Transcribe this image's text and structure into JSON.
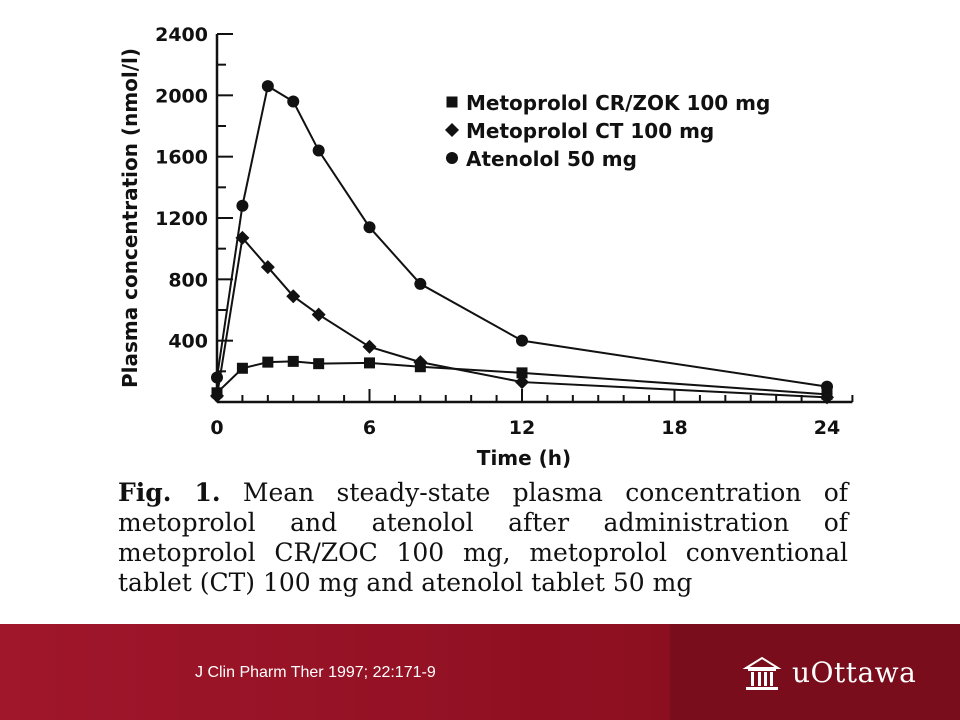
{
  "chart_data": {
    "type": "line",
    "title": "",
    "xlabel": "Time (h)",
    "ylabel": "Plasma concentration (nmol/l)",
    "xlim": [
      0,
      25
    ],
    "ylim": [
      0,
      2400
    ],
    "xticks": [
      0,
      6,
      12,
      18,
      24
    ],
    "yticks": [
      400,
      800,
      1200,
      1600,
      2000,
      2400
    ],
    "legend_position": "top-right",
    "series": [
      {
        "name": "Metoprolol CR/ZOK 100 mg",
        "marker": "square",
        "x": [
          0,
          1,
          2,
          3,
          4,
          6,
          8,
          12,
          24
        ],
        "y": [
          60,
          220,
          260,
          265,
          250,
          255,
          230,
          190,
          50
        ]
      },
      {
        "name": "Metoprolol CT 100 mg",
        "marker": "diamond",
        "x": [
          0,
          1,
          2,
          3,
          4,
          6,
          8,
          12,
          24
        ],
        "y": [
          40,
          1070,
          880,
          690,
          570,
          360,
          260,
          130,
          30
        ]
      },
      {
        "name": "Atenolol 50 mg",
        "marker": "circle",
        "x": [
          0,
          1,
          2,
          3,
          4,
          6,
          8,
          12,
          24
        ],
        "y": [
          160,
          1280,
          2060,
          1960,
          1640,
          1140,
          770,
          400,
          100
        ]
      }
    ]
  },
  "caption": {
    "fig_label": "Fig. 1.",
    "text": "Mean steady-state plasma concentration of metoprolol and atenolol after administration of metoprolol CR/ZOC 100 mg, metoprolol conventional tablet (CT) 100 mg and atenolol tablet 50 mg"
  },
  "footer": {
    "citation": "J Clin Pharm Ther 1997; 22:171-9",
    "logo_text": "uOttawa",
    "logo_icon": "building-icon",
    "color": "#8c0f20"
  }
}
